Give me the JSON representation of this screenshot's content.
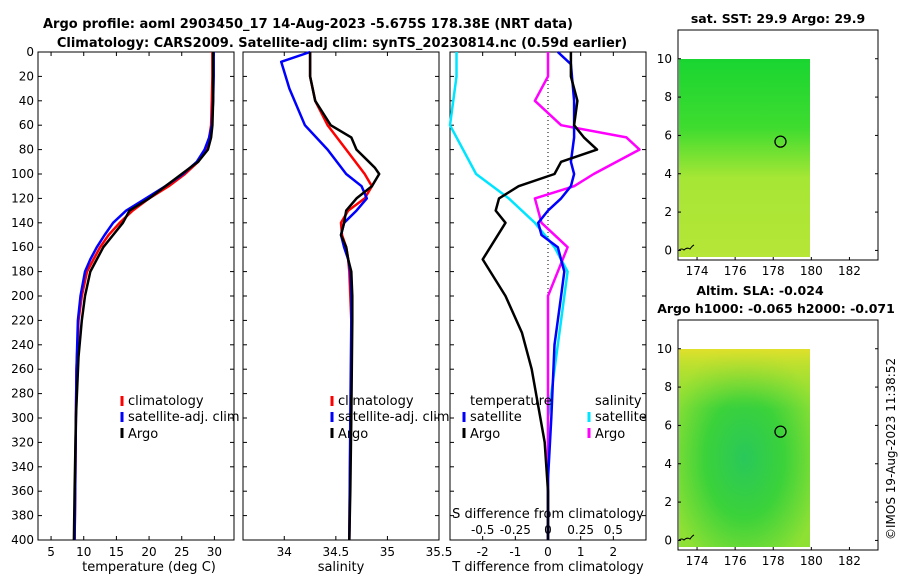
{
  "title": {
    "line1": "Argo profile: aoml 2903450_17 14-Aug-2023 -5.675S 178.38E (NRT data)",
    "line2": "Climatology: CARS2009. Satellite-adj clim: synTS_20230814.nc (0.59d earlier)"
  },
  "copyright": "©IMOS 19-Aug-2023 11:38:52",
  "colors": {
    "climatology": "#ff0000",
    "satellite": "#0000ff",
    "argo": "#000000",
    "sat_salinity": "#00e5ff",
    "argo_salinity": "#ff00ff"
  },
  "chart_data": [
    {
      "name": "temperature",
      "type": "line",
      "xlabel": "temperature (deg C)",
      "ylabel": "",
      "xlim": [
        3,
        33
      ],
      "ylim": [
        400,
        0
      ],
      "xticks": [
        "5",
        "10",
        "15",
        "20",
        "25",
        "30"
      ],
      "yticks": [
        "0",
        "20",
        "40",
        "60",
        "80",
        "100",
        "120",
        "140",
        "160",
        "180",
        "200",
        "220",
        "240",
        "260",
        "280",
        "300",
        "320",
        "340",
        "360",
        "380",
        "400"
      ],
      "legend": [
        "climatology",
        "satellite-adj. clim",
        "Argo"
      ],
      "series": [
        {
          "name": "climatology",
          "x": [
            29.7,
            29.7,
            29.6,
            29.5,
            29.2,
            28.7,
            27.5,
            25.5,
            23,
            20,
            17.5,
            15.5,
            13.8,
            12.5,
            11.5,
            10.5,
            9.7,
            9.2,
            8.9,
            8.8,
            8.7,
            8.6
          ],
          "y": [
            0,
            20,
            40,
            60,
            70,
            80,
            90,
            100,
            110,
            120,
            130,
            140,
            150,
            160,
            170,
            180,
            200,
            220,
            260,
            300,
            360,
            400
          ]
        },
        {
          "name": "satellite-adj. clim",
          "x": [
            29.9,
            29.9,
            29.8,
            29.6,
            29.2,
            28.5,
            27.3,
            25.2,
            22.5,
            19.5,
            16.5,
            14.5,
            13.2,
            12,
            11,
            10.2,
            9.5,
            9.1,
            8.9,
            8.8,
            8.7,
            8.6
          ],
          "y": [
            0,
            20,
            40,
            60,
            70,
            80,
            90,
            100,
            110,
            120,
            130,
            140,
            150,
            160,
            170,
            180,
            200,
            220,
            260,
            300,
            360,
            400
          ]
        },
        {
          "name": "Argo",
          "x": [
            29.8,
            29.8,
            29.8,
            29.7,
            29.5,
            29,
            27.5,
            25,
            22.5,
            20,
            17,
            16,
            14.5,
            13,
            12,
            11,
            10.2,
            9.7,
            9.2,
            8.8,
            8.6,
            8.5
          ],
          "y": [
            0,
            20,
            40,
            60,
            70,
            80,
            90,
            100,
            110,
            120,
            130,
            140,
            150,
            160,
            170,
            180,
            200,
            220,
            250,
            300,
            360,
            400
          ]
        }
      ]
    },
    {
      "name": "salinity",
      "type": "line",
      "xlabel": "salinity",
      "ylabel": "",
      "xlim": [
        33.6,
        35.5
      ],
      "ylim": [
        400,
        0
      ],
      "xticks": [
        "34",
        "34.5",
        "35",
        "35.5"
      ],
      "legend": [
        "climatology",
        "satellite-adj. clim",
        "Argo"
      ],
      "series": [
        {
          "name": "climatology",
          "x": [
            34.25,
            34.25,
            34.3,
            34.42,
            34.6,
            34.78,
            34.85,
            34.78,
            34.62,
            34.55,
            34.56,
            34.6,
            34.62,
            34.63,
            34.64,
            34.65,
            34.65,
            34.64,
            34.63
          ],
          "y": [
            0,
            20,
            40,
            60,
            80,
            100,
            110,
            120,
            130,
            140,
            150,
            160,
            170,
            180,
            200,
            220,
            260,
            320,
            400
          ]
        },
        {
          "name": "satellite-adj. clim",
          "x": [
            34.25,
            33.97,
            34.05,
            34.2,
            34.42,
            34.6,
            34.75,
            34.8,
            34.7,
            34.58,
            34.55,
            34.58,
            34.62,
            34.64,
            34.65,
            34.65,
            34.64,
            34.63
          ],
          "y": [
            0,
            8,
            30,
            60,
            80,
            100,
            110,
            120,
            130,
            140,
            150,
            160,
            170,
            180,
            200,
            220,
            300,
            400
          ]
        },
        {
          "name": "Argo",
          "x": [
            34.25,
            34.25,
            34.3,
            34.45,
            34.65,
            34.7,
            34.82,
            34.88,
            34.92,
            34.85,
            34.7,
            34.6,
            34.58,
            34.55,
            34.6,
            34.62,
            34.65,
            34.66,
            34.66,
            34.65,
            34.64,
            34.63
          ],
          "y": [
            0,
            20,
            40,
            60,
            70,
            80,
            90,
            95,
            100,
            110,
            120,
            130,
            140,
            150,
            160,
            170,
            180,
            200,
            220,
            300,
            360,
            400
          ]
        }
      ]
    },
    {
      "name": "differences",
      "type": "line",
      "xlabel": "T difference from climatology",
      "xlabel_top": "S difference from climatology",
      "xlim": [
        -3,
        3
      ],
      "ylim": [
        400,
        0
      ],
      "xticks": [
        "-2",
        "-1",
        "0",
        "1",
        "2"
      ],
      "xticks_top": [
        "-0.5",
        "-0.25",
        "0",
        "0.25",
        "0.5"
      ],
      "legend_temperature_title": "temperature",
      "legend_salinity_title": "salinity",
      "legend": [
        "satellite",
        "Argo",
        "satellite",
        "Argo"
      ],
      "series": [
        {
          "name": "temperature satellite",
          "x": [
            0.3,
            0.7,
            0.8,
            0.8,
            0.7,
            0.8,
            0.7,
            0.4,
            0,
            -0.3,
            -0.2,
            0.3,
            0.5,
            0.4,
            0.2,
            0.1,
            0,
            0
          ],
          "y": [
            0,
            10,
            40,
            70,
            90,
            100,
            110,
            120,
            130,
            140,
            150,
            160,
            180,
            200,
            240,
            300,
            350,
            400
          ]
        },
        {
          "name": "temperature Argo",
          "x": [
            0.7,
            0.7,
            0.9,
            0.8,
            1.1,
            1.5,
            0.4,
            0.2,
            -0.9,
            -1.5,
            -1.6,
            -1.3,
            -2,
            -1.3,
            -0.8,
            -0.5,
            -0.3,
            -0.1,
            0,
            0
          ],
          "y": [
            0,
            20,
            40,
            60,
            70,
            80,
            90,
            100,
            110,
            120,
            130,
            140,
            170,
            200,
            230,
            260,
            290,
            320,
            360,
            400
          ]
        },
        {
          "name": "salinity satellite",
          "x": [
            -0.7,
            -0.7,
            -0.75,
            -0.55,
            -0.3,
            -0.1,
            0.05,
            0.15,
            0.1,
            0,
            0
          ],
          "y": [
            0,
            20,
            60,
            100,
            120,
            140,
            160,
            180,
            220,
            300,
            400
          ]
        },
        {
          "name": "salinity Argo",
          "x": [
            0,
            0,
            -0.1,
            0.1,
            0.6,
            0.7,
            0.35,
            0.2,
            -0.1,
            -0.05,
            0.15,
            0,
            0
          ],
          "y": [
            0,
            20,
            40,
            60,
            70,
            80,
            100,
            110,
            120,
            140,
            160,
            200,
            400
          ]
        }
      ]
    },
    {
      "name": "sat-sst-map",
      "type": "heatmap",
      "title": "sat. SST: 29.9 Argo: 29.9",
      "xlim": [
        173,
        183.5
      ],
      "ylim": [
        -0.5,
        11.5
      ],
      "xticks": [
        "174",
        "176",
        "178",
        "180",
        "182"
      ],
      "yticks": [
        "0",
        "2",
        "4",
        "6",
        "8",
        "10"
      ],
      "argo_position": [
        178.38,
        5.675
      ]
    },
    {
      "name": "sla-map",
      "type": "heatmap",
      "title": "Altim. SLA: -0.024",
      "subtitle": "Argo h1000: -0.065 h2000: -0.071",
      "xlim": [
        173,
        183.5
      ],
      "ylim": [
        -0.5,
        11.5
      ],
      "xticks": [
        "174",
        "176",
        "178",
        "180",
        "182"
      ],
      "yticks": [
        "0",
        "2",
        "4",
        "6",
        "8",
        "10"
      ],
      "argo_position": [
        178.38,
        5.675
      ]
    }
  ]
}
